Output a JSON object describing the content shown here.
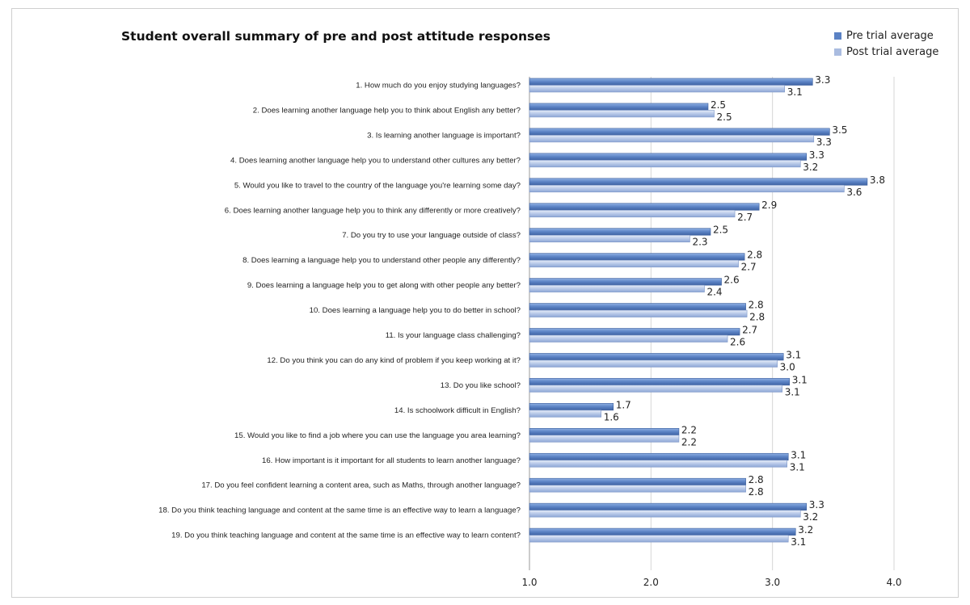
{
  "chart_data": {
    "type": "bar",
    "orientation": "horizontal",
    "title": "Student overall summary of pre and post attitude responses",
    "xlabel": "",
    "ylabel": "",
    "xlim": [
      1.0,
      4.0
    ],
    "ticks": [
      "1.0",
      "2.0",
      "3.0",
      "4.0"
    ],
    "tick_values": [
      1.0,
      2.0,
      3.0,
      4.0
    ],
    "grid": true,
    "legend_position": "top-right",
    "categories": [
      "1.      How much do you enjoy studying languages?",
      "2.      Does learning another language help you to think about English any better?",
      "3.      Is learning another language is important?",
      "4.      Does learning another language help you to understand other cultures any better?",
      "5.      Would you like to travel to the country of the language you're learning some day?",
      "6.      Does learning another language help you to think any differently or more creatively?",
      "7.      Do you try to use your language outside of class?",
      "8.      Does learning a language help you to understand other people any differently?",
      "9.      Does learning a language help you to get along with other people any better?",
      "10.    Does learning a language help you to do better in school?",
      "11.    Is your language class challenging?",
      "12.    Do you think you can do any kind of problem if you keep working at it?",
      "13.    Do you like school?",
      "14.    Is schoolwork difficult in English?",
      "15.    Would you like to find a job where you can use the language you area learning?",
      "16.    How important is it important for all students to learn another language?",
      "17.    Do you feel confident learning a content area, such as Maths, through another language?",
      "18.    Do you think teaching language and content at the same time is an effective way to learn a language?",
      "19.    Do you think teaching language and content at the same time is an effective way to learn content?"
    ],
    "series": [
      {
        "name": "Pre trial average",
        "color": "#5b82c4",
        "values": [
          3.33,
          2.47,
          3.47,
          3.28,
          3.78,
          2.89,
          2.49,
          2.77,
          2.58,
          2.78,
          2.73,
          3.09,
          3.14,
          1.69,
          2.23,
          3.13,
          2.78,
          3.28,
          3.19
        ],
        "labels": [
          "3.3",
          "2.5",
          "3.5",
          "3.3",
          "3.8",
          "2.9",
          "2.5",
          "2.8",
          "2.6",
          "2.8",
          "2.7",
          "3.1",
          "3.1",
          "1.7",
          "2.2",
          "3.1",
          "2.8",
          "3.3",
          "3.2"
        ]
      },
      {
        "name": "Post trial average",
        "color": "#aabce0",
        "values": [
          3.1,
          2.52,
          3.34,
          3.23,
          3.59,
          2.69,
          2.32,
          2.72,
          2.44,
          2.79,
          2.63,
          3.04,
          3.08,
          1.59,
          2.23,
          3.12,
          2.78,
          3.23,
          3.13
        ],
        "labels": [
          "3.1",
          "2.5",
          "3.3",
          "3.2",
          "3.6",
          "2.7",
          "2.3",
          "2.7",
          "2.4",
          "2.8",
          "2.6",
          "3.0",
          "3.1",
          "1.6",
          "2.2",
          "3.1",
          "2.8",
          "3.2",
          "3.1"
        ]
      }
    ]
  }
}
